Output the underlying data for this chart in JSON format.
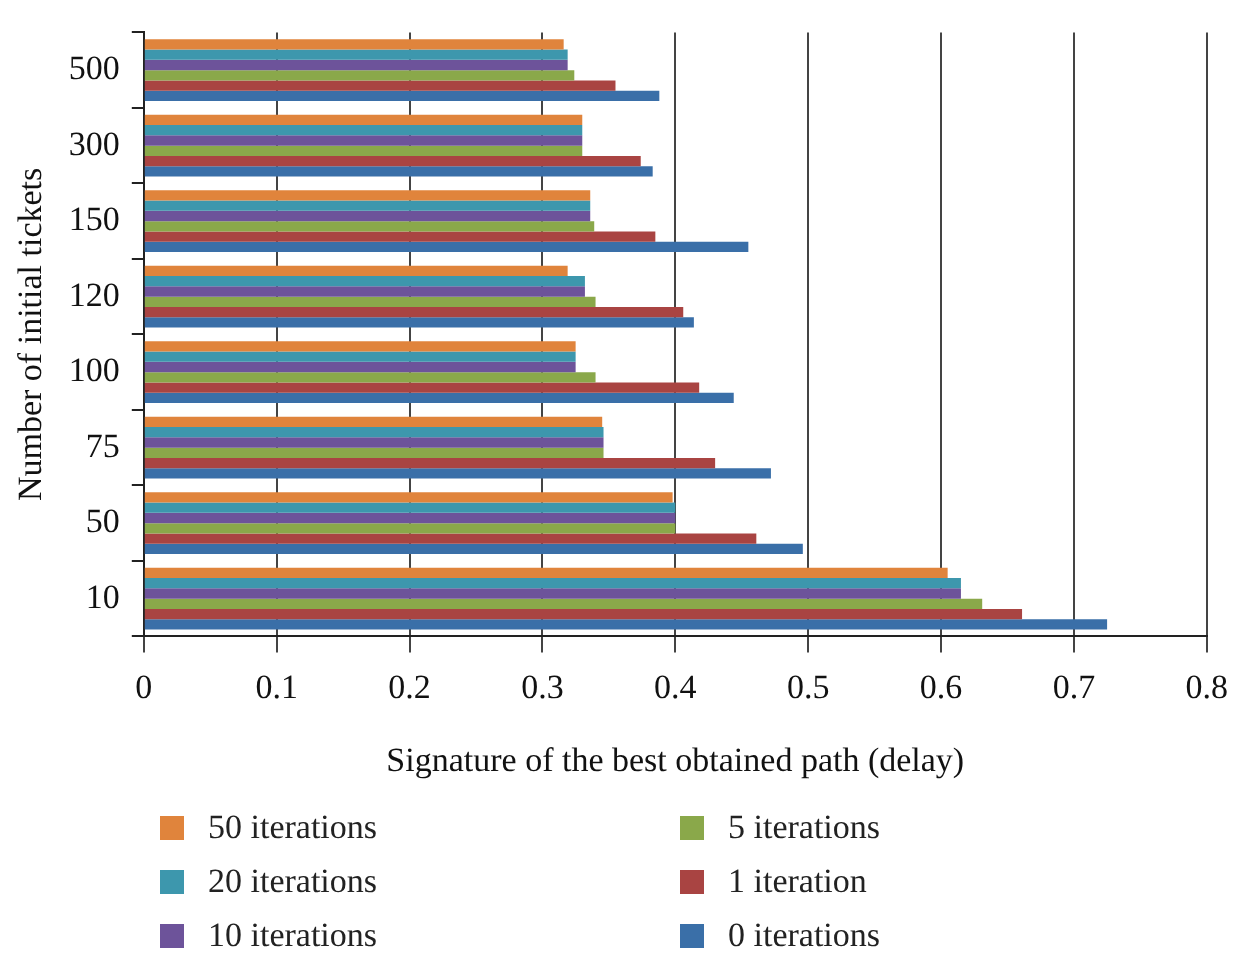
{
  "chart_data": {
    "type": "bar",
    "orientation": "horizontal",
    "xlabel": "Signature of the best obtained path (delay)",
    "ylabel": "Number of initial tickets",
    "categories": [
      "500",
      "300",
      "150",
      "120",
      "100",
      "75",
      "50",
      "10"
    ],
    "series": [
      {
        "name": "50 iterations",
        "color": "#e0843c",
        "values": [
          0.316,
          0.33,
          0.336,
          0.319,
          0.325,
          0.345,
          0.398,
          0.605
        ]
      },
      {
        "name": "20 iterations",
        "color": "#3d97ad",
        "values": [
          0.319,
          0.33,
          0.336,
          0.332,
          0.325,
          0.346,
          0.4,
          0.615
        ]
      },
      {
        "name": "10 iterations",
        "color": "#6d539a",
        "values": [
          0.319,
          0.33,
          0.336,
          0.332,
          0.325,
          0.346,
          0.4,
          0.615
        ]
      },
      {
        "name": "5 iterations",
        "color": "#8aa84a",
        "values": [
          0.324,
          0.33,
          0.339,
          0.34,
          0.34,
          0.346,
          0.4,
          0.631
        ]
      },
      {
        "name": "1 iteration",
        "color": "#a94442",
        "values": [
          0.355,
          0.374,
          0.385,
          0.406,
          0.418,
          0.43,
          0.461,
          0.661
        ]
      },
      {
        "name": "0 iterations",
        "color": "#3a6fa8",
        "values": [
          0.388,
          0.383,
          0.455,
          0.414,
          0.444,
          0.472,
          0.496,
          0.725
        ]
      }
    ],
    "xlim": [
      0,
      0.8
    ],
    "xticks": [
      0,
      0.1,
      0.2,
      0.3,
      0.4,
      0.5,
      0.6,
      0.7,
      0.8
    ],
    "grid": "x",
    "legend": "bottom"
  }
}
